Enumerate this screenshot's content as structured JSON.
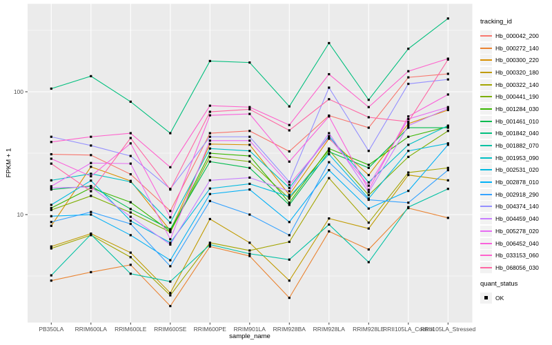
{
  "chart_data": {
    "type": "line",
    "title": "",
    "xlabel": "sample_name",
    "ylabel": "FPKM + 1",
    "y_scale": "log10",
    "ylim": [
      1.3,
      550
    ],
    "y_ticks": [
      10,
      100
    ],
    "y_minor_gridlines": [
      3.162,
      31.62,
      316.2
    ],
    "grid": true,
    "legend_position": "right",
    "point_shape": "black-square",
    "categories": [
      "PB350LA",
      "RRIM600LA",
      "RRIM600LE",
      "RRIM600SE",
      "RRIM600PE",
      "RRIM901LA",
      "RRIM928BA",
      "RRIM928LA",
      "RRIM928LE",
      "RRII105LA_Control",
      "RRII105LA_Stressed"
    ],
    "series": [
      {
        "name": "Hb_000042_200",
        "color": "#F8766D",
        "values": [
          31,
          30.5,
          21.3,
          10.7,
          46,
          48,
          32.7,
          64,
          51,
          131,
          140
        ]
      },
      {
        "name": "Hb_000272_140",
        "color": "#EA8331",
        "values": [
          2.9,
          3.4,
          3.9,
          1.8,
          5.5,
          4.6,
          2.1,
          7.3,
          5.2,
          11.3,
          9.4
        ]
      },
      {
        "name": "Hb_000300_220",
        "color": "#D89000",
        "values": [
          8.1,
          24.5,
          18.8,
          7.4,
          37.5,
          37,
          14.5,
          41.5,
          21,
          55,
          71
        ]
      },
      {
        "name": "Hb_000320_180",
        "color": "#C09B00",
        "values": [
          5.5,
          7.0,
          4.9,
          2.3,
          9.2,
          5.9,
          2.9,
          9.3,
          7.7,
          21,
          19
        ]
      },
      {
        "name": "Hb_000322_140",
        "color": "#A3A500",
        "values": [
          5.3,
          6.8,
          4.5,
          2.2,
          5.9,
          5.1,
          6.0,
          19.8,
          8.6,
          22,
          24
        ]
      },
      {
        "name": "Hb_000441_190",
        "color": "#7CAE00",
        "values": [
          10.9,
          14.2,
          10.4,
          7.2,
          29.5,
          27,
          13.5,
          33.5,
          14.4,
          29.5,
          48
        ]
      },
      {
        "name": "Hb_001284_030",
        "color": "#39B600",
        "values": [
          11.3,
          16.5,
          12.6,
          7.3,
          31.6,
          30,
          12.5,
          34.5,
          25.4,
          43,
          52
        ]
      },
      {
        "name": "Hb_001461_010",
        "color": "#00BB4E",
        "values": [
          16,
          17.1,
          11.1,
          7.6,
          27,
          24,
          12,
          32.5,
          24,
          51,
          51
        ]
      },
      {
        "name": "Hb_001842_040",
        "color": "#00BF7D",
        "values": [
          106,
          134,
          83,
          46,
          178,
          173,
          76,
          249,
          86,
          224,
          395
        ]
      },
      {
        "name": "Hb_001882_070",
        "color": "#00C1A3",
        "values": [
          3.2,
          6.9,
          3.3,
          2.85,
          5.7,
          4.8,
          4.3,
          8.3,
          4.1,
          11.5,
          16.2
        ]
      },
      {
        "name": "Hb_001953_090",
        "color": "#00BFC4",
        "values": [
          19,
          21.5,
          18.5,
          8.6,
          34.5,
          33,
          16.5,
          43.5,
          18.3,
          37,
          53
        ]
      },
      {
        "name": "Hb_002531_020",
        "color": "#00BAE0",
        "values": [
          12,
          18.9,
          8.9,
          5.9,
          16.3,
          17.8,
          14,
          31,
          13.5,
          33,
          38
        ]
      },
      {
        "name": "Hb_002878_010",
        "color": "#00B0F6",
        "values": [
          9.7,
          10,
          6.8,
          4.25,
          14.7,
          16,
          8.7,
          23,
          11.2,
          15.6,
          37
        ]
      },
      {
        "name": "Hb_002918_290",
        "color": "#35A2FF",
        "values": [
          8.7,
          10.5,
          8.4,
          3.8,
          12.9,
          10,
          6.8,
          26.7,
          13.2,
          12.5,
          23
        ]
      },
      {
        "name": "Hb_004374_140",
        "color": "#9590FF",
        "values": [
          43,
          36.5,
          30,
          16.2,
          43,
          43,
          18.5,
          108,
          33,
          116,
          126
        ]
      },
      {
        "name": "Hb_004459_040",
        "color": "#C77CFF",
        "values": [
          16.5,
          16.8,
          9.6,
          5.7,
          19,
          20,
          15.5,
          46,
          15.2,
          53,
          73
        ]
      },
      {
        "name": "Hb_005278_020",
        "color": "#E76BF3",
        "values": [
          17,
          26.3,
          26,
          6.3,
          40,
          40,
          17.5,
          42.5,
          17.2,
          60,
          75
        ]
      },
      {
        "name": "Hb_006452_040",
        "color": "#FA62DB",
        "values": [
          28.5,
          20.5,
          38,
          9.5,
          64.3,
          66,
          27,
          63,
          15.9,
          63,
          95
        ]
      },
      {
        "name": "Hb_033153_060",
        "color": "#FF61CC",
        "values": [
          39,
          43,
          46,
          24.3,
          77,
          75,
          53.6,
          139,
          75,
          147,
          186
        ]
      },
      {
        "name": "Hb_068056_030",
        "color": "#FF67A4",
        "values": [
          26,
          15.5,
          42,
          16,
          68.7,
          72,
          48.5,
          87,
          62,
          57,
          183
        ]
      }
    ]
  },
  "legend": {
    "tracking_title": "tracking_id",
    "quant_title": "quant_status",
    "quant_items": [
      {
        "label": "OK",
        "marker": "black-square"
      }
    ]
  },
  "panel": {
    "bg": "#EBEBEB",
    "grid_color": "#FFFFFF",
    "legend_key_bg": "#F2F2F2",
    "tick_color": "#333333",
    "tick_label_color": "#4D4D4D"
  }
}
